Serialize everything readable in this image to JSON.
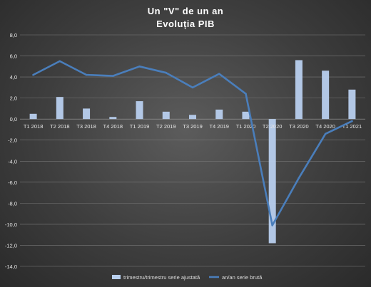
{
  "chart_data": {
    "type": "bar",
    "title": "Un \"V\" de un an",
    "subtitle": "Evoluția  PIB",
    "categories": [
      "T1 2018",
      "T2 2018",
      "T3 2018",
      "T4 2018",
      "T1 2019",
      "T2 2019",
      "T3 2019",
      "T4 2019",
      "T1 2020",
      "T2 2020",
      "T3 2020",
      "T4 2020",
      "T1 2021"
    ],
    "series": [
      {
        "name": "trimestru/trimestru serie ajustată",
        "type": "bar",
        "color": "#b8cfee",
        "values": [
          0.5,
          2.1,
          1.0,
          0.2,
          1.7,
          0.7,
          0.4,
          0.9,
          0.7,
          -11.8,
          5.6,
          4.6,
          2.8
        ]
      },
      {
        "name": "an/an serie brută",
        "type": "line",
        "color": "#4a7ebb",
        "values": [
          4.2,
          5.5,
          4.2,
          4.1,
          5.0,
          4.4,
          3.0,
          4.3,
          2.4,
          -10.1,
          -5.6,
          -1.4,
          -0.2
        ]
      }
    ],
    "ylim": [
      -14,
      8
    ],
    "yticks": [
      "8,0",
      "6,0",
      "4,0",
      "2,0",
      "0,0",
      "-2,0",
      "-4,0",
      "-6,0",
      "-8,0",
      "-10,0",
      "-12,0",
      "-14,0"
    ],
    "ytick_values": [
      8,
      6,
      4,
      2,
      0,
      -2,
      -4,
      -6,
      -8,
      -10,
      -12,
      -14
    ],
    "grid": true,
    "legend_position": "bottom",
    "colors": {
      "grid": "#7a7a7a",
      "axis": "#a0a0a0"
    }
  }
}
